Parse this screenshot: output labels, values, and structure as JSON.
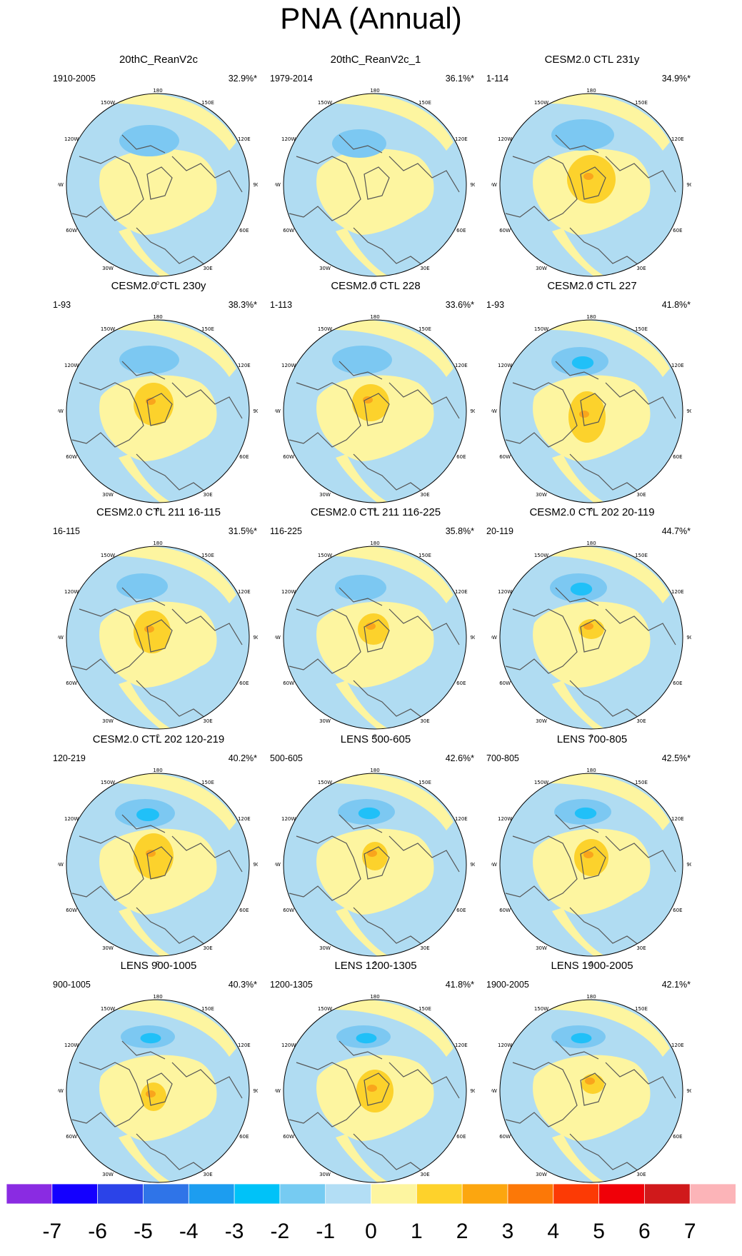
{
  "title": "PNA (Annual)",
  "map_labels": [
    "180",
    "150E",
    "120E",
    "90E",
    "60E",
    "30E",
    "0",
    "30W",
    "60W",
    "90W",
    "120W",
    "150W"
  ],
  "colors": {
    "negative_pattern": "#b0dcf2",
    "positive_pattern": "#fdf5a0",
    "strong_negative": "#7cc8f2",
    "core_negative": "#20c0f8",
    "strong_positive": "#fcd22c",
    "core_positive": "#f9a51c",
    "coastline": "#555555"
  },
  "panels": [
    {
      "title": "20thC_ReanV2c",
      "period": "1910-2005",
      "variance": "32.9%*"
    },
    {
      "title": "20thC_ReanV2c_1",
      "period": "1979-2014",
      "variance": "36.1%*"
    },
    {
      "title": "CESM2.0 CTL 231y",
      "period": "1-114",
      "variance": "34.9%*"
    },
    {
      "title": "CESM2.0 CTL 230y",
      "period": "1-93",
      "variance": "38.3%*"
    },
    {
      "title": "CESM2.0 CTL 228",
      "period": "1-113",
      "variance": "33.6%*"
    },
    {
      "title": "CESM2.0 CTL 227",
      "period": "1-93",
      "variance": "41.8%*"
    },
    {
      "title": "CESM2.0 CTL 211 16-115",
      "period": "16-115",
      "variance": "31.5%*"
    },
    {
      "title": "CESM2.0 CTL 211 116-225",
      "period": "116-225",
      "variance": "35.8%*"
    },
    {
      "title": "CESM2.0 CTL 202 20-119",
      "period": "20-119",
      "variance": "44.7%*"
    },
    {
      "title": "CESM2.0 CTL 202 120-219",
      "period": "120-219",
      "variance": "40.2%*"
    },
    {
      "title": "LENS 500-605",
      "period": "500-605",
      "variance": "42.6%*"
    },
    {
      "title": "LENS 700-805",
      "period": "700-805",
      "variance": "42.5%*"
    },
    {
      "title": "LENS 900-1005",
      "period": "900-1005",
      "variance": "40.3%*"
    },
    {
      "title": "LENS 1200-1305",
      "period": "1200-1305",
      "variance": "41.8%*"
    },
    {
      "title": "LENS 1900-2005",
      "period": "1900-2005",
      "variance": "42.1%*"
    }
  ],
  "colorbar": {
    "labels": [
      "-7",
      "-6",
      "-5",
      "-4",
      "-3",
      "-2",
      "-1",
      "0",
      "1",
      "2",
      "3",
      "4",
      "5",
      "6",
      "7"
    ],
    "colors": [
      "#8a2be2",
      "#1400ff",
      "#2b43e8",
      "#2f74e8",
      "#1c9df0",
      "#00c2f8",
      "#76cbf2",
      "#b3def5",
      "#fdf5a0",
      "#fed22b",
      "#fca60f",
      "#fc7807",
      "#fc3a05",
      "#f00008",
      "#d0191b",
      "#fcb4b8"
    ]
  }
}
